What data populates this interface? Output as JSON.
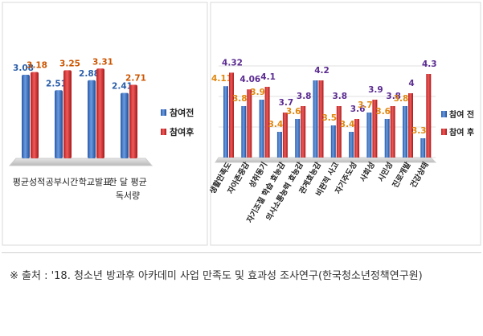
{
  "colors": {
    "before": "#3a72c4",
    "after": "#d22e2e",
    "left_value_before": "#2b5ea8",
    "left_value_after": "#cc5500",
    "right_value_before": "#e0870e",
    "right_value_after": "#5b2c91",
    "floor": "#cccccc",
    "grid": "#e2e2e2"
  },
  "chart_data": [
    {
      "type": "bar",
      "title": "",
      "xlabel": "",
      "ylabel": "",
      "categories": [
        "평균성적",
        "공부시간",
        "학교발표",
        "한 달 평균\n독서량"
      ],
      "series": [
        {
          "name": "참여전",
          "values": [
            3.08,
            2.51,
            2.88,
            2.41
          ]
        },
        {
          "name": "참여후",
          "values": [
            3.18,
            3.25,
            3.31,
            2.71
          ]
        }
      ],
      "ylim": [
        0,
        4
      ],
      "legend": "right"
    },
    {
      "type": "bar",
      "title": "",
      "xlabel": "",
      "ylabel": "",
      "categories": [
        "생활만족도",
        "자아존중감",
        "성취동기",
        "자기조절 학습 효능감",
        "의사소통능력 효능감",
        "관계효능감",
        "비판적 사고",
        "자기주도성",
        "사회성",
        "시민성",
        "진로개발",
        "건강상태"
      ],
      "series": [
        {
          "name": "참여 전",
          "values": [
            4.11,
            3.8,
            3.9,
            3.4,
            3.6,
            4.2,
            3.5,
            3.4,
            3.7,
            3.6,
            3.8,
            3.3
          ]
        },
        {
          "name": "참여 후",
          "values": [
            4.32,
            4.06,
            4.1,
            3.7,
            3.8,
            4.2,
            3.8,
            3.6,
            3.9,
            3.8,
            4.0,
            4.3
          ]
        }
      ],
      "value_labels_before": [
        "4.11",
        "3.8",
        "3.9",
        "3.4",
        "3.6",
        "",
        "3.5",
        "3.4",
        "3.7",
        "3.6",
        "3.8",
        "3.3"
      ],
      "value_labels_after": [
        "4.32",
        "4.06",
        "4.1",
        "3.7",
        "3.8",
        "4.2",
        "3.8",
        "3.6",
        "3.9",
        "3.8",
        "4",
        "4.3"
      ],
      "ylim": [
        3,
        4.5
      ],
      "legend": "right"
    }
  ],
  "caption": "※ 출처 : '18. 청소년 방과후 아카데미 사업 만족도 및 효과성 조사연구(한국청소년정책연구원)"
}
